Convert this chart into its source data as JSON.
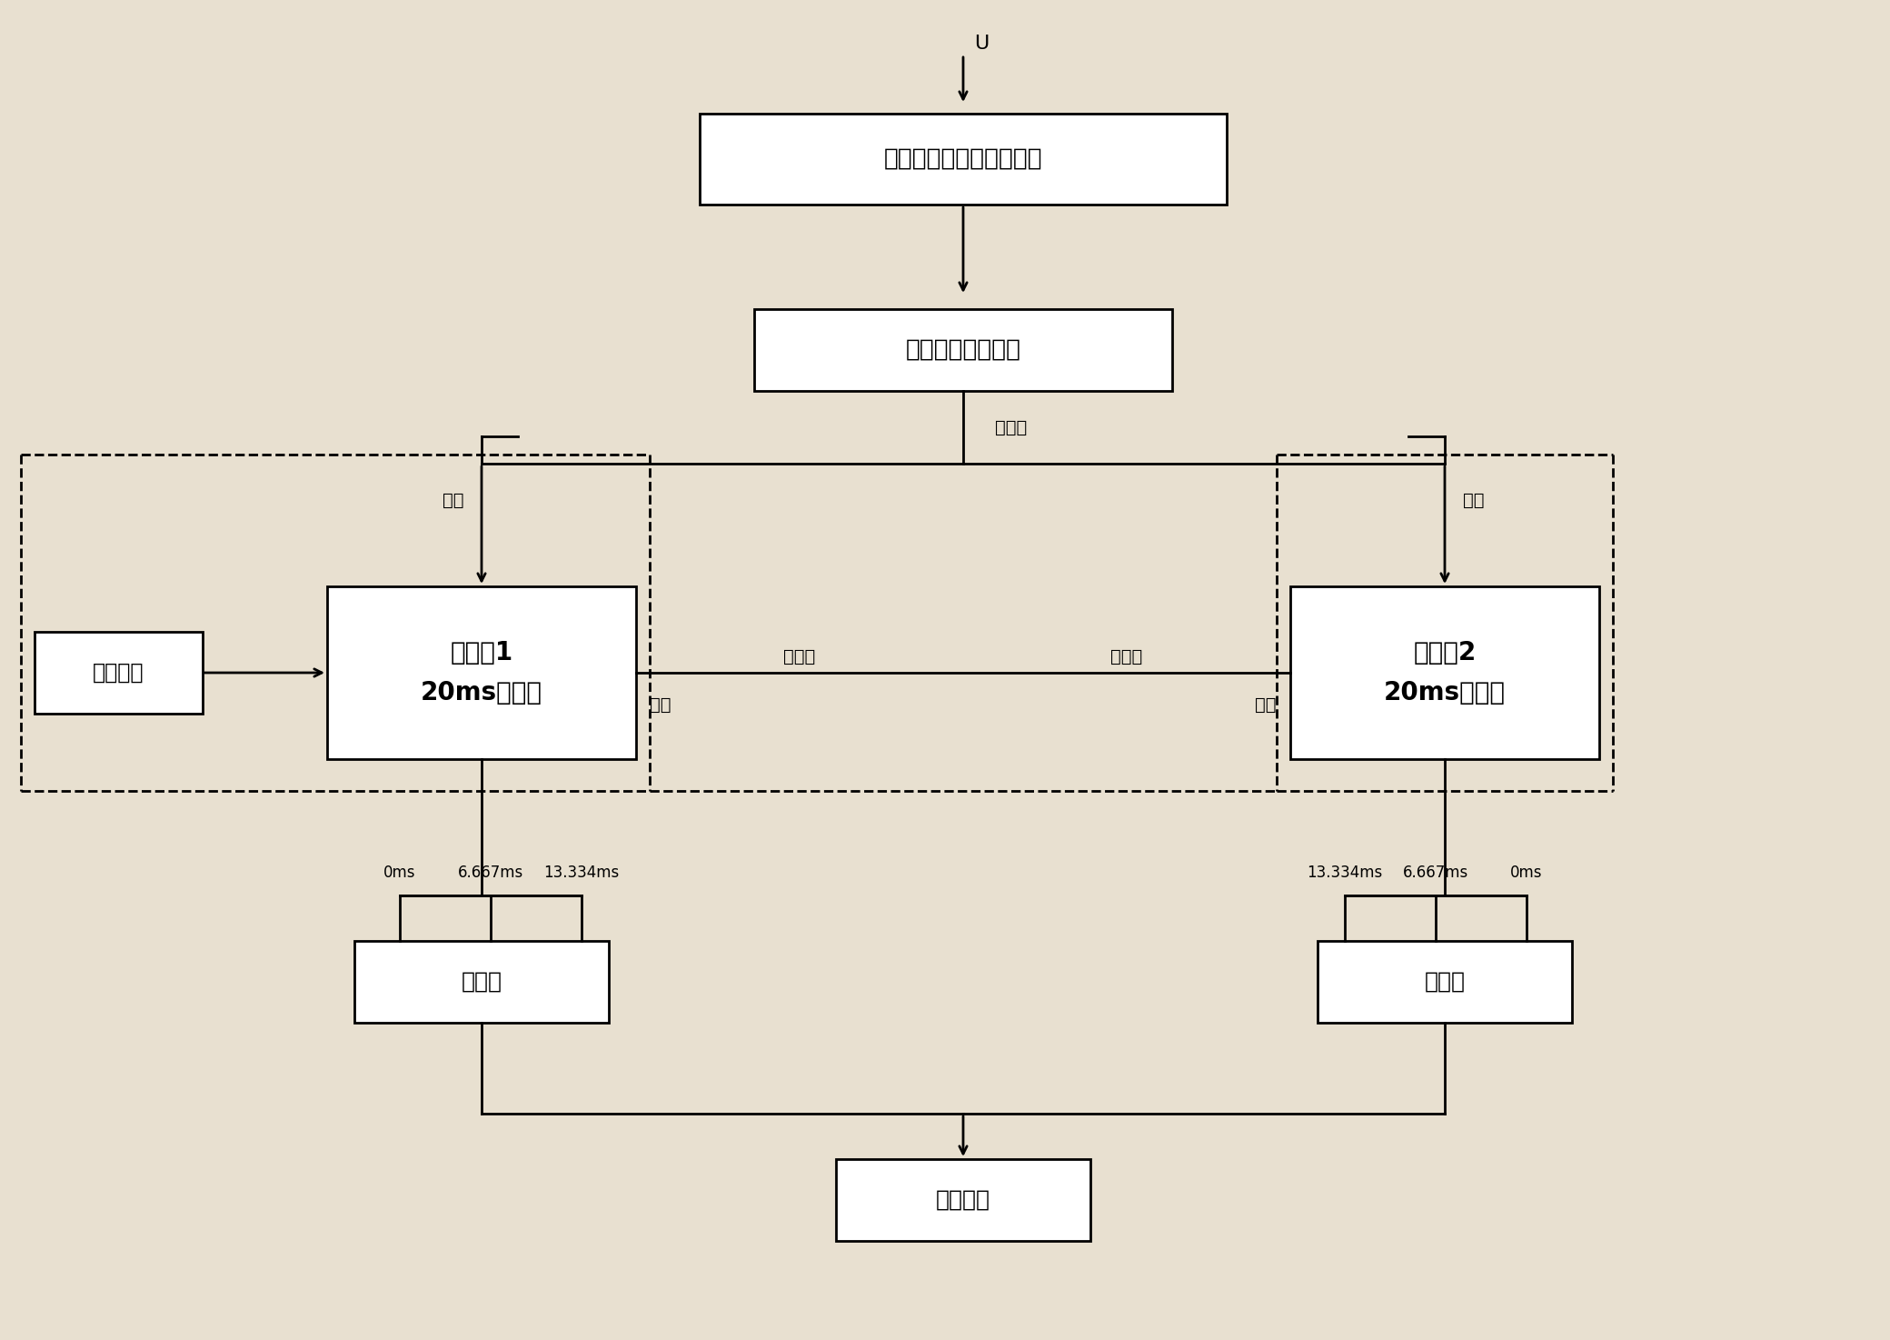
{
  "bg_color": "#e8e0d0",
  "box_color": "#ffffff",
  "box_edge_color": "#000000",
  "text_color": "#000000",
  "title_u": "U",
  "box1_text": "电压上升沿过零采样电路",
  "box2_text": "采样次数选择电路",
  "box3_line1": "计时器1",
  "box3_line2": "20ms自复位",
  "box4_line1": "计时器2",
  "box4_line2": "20ms自复位",
  "box_clock": "时钟电路",
  "box5_text": "比较器",
  "box6_text": "比较器",
  "box7_text": "显示回路",
  "label_di_yi": "第一次",
  "label_di_er": "第二次",
  "label_di_san": "第三次",
  "label_qi_dong_l": "启动",
  "label_qi_dong_r": "启动",
  "label_ting_zhi_l": "停止",
  "label_ting_zhi_r": "停止",
  "label_0ms_l": "0ms",
  "label_6667ms_l": "6.667ms",
  "label_13334ms_l": "13.334ms",
  "label_13334ms_r": "13.334ms",
  "label_6667ms_r": "6.667ms",
  "label_0ms_r": "0ms",
  "figsize": [
    20.8,
    14.74
  ],
  "dpi": 100
}
